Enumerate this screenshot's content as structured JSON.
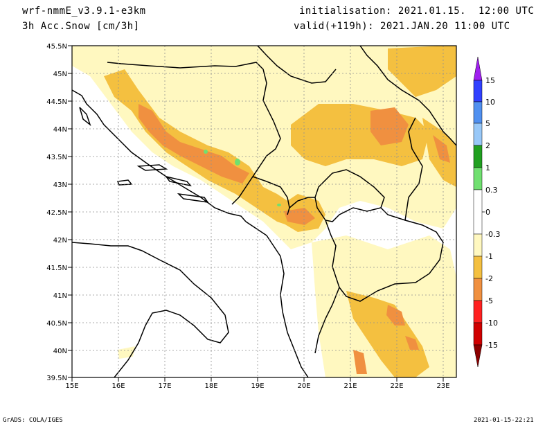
{
  "header": {
    "model": "wrf-nmmE_v3.9.1-e3km",
    "field": "3h Acc.Snow [cm/3h]",
    "initialisation": "initialisation: 2021.01.15.  12:00 UTC",
    "valid": "valid(+119h): 2021.JAN.20 11:00 UTC"
  },
  "footer": {
    "credit": "GrADS: COLA/IGES",
    "timestamp": "2021-01-15-22:21"
  },
  "map": {
    "lat_labels": [
      "45.5N",
      "45N",
      "44.5N",
      "44N",
      "43.5N",
      "43N",
      "42.5N",
      "42N",
      "41.5N",
      "41N",
      "40.5N",
      "40N",
      "39.5N"
    ],
    "lon_labels": [
      "15E",
      "16E",
      "17E",
      "18E",
      "19E",
      "20E",
      "21E",
      "22E",
      "23E"
    ],
    "lon_range": [
      15,
      23.3
    ],
    "lat_range": [
      39.5,
      45.5
    ],
    "snow_colors": {
      "light": "#fff8c0",
      "pale": "#ffe9a0",
      "yellow": "#f4c040",
      "orange": "#f0a040",
      "dark_orange": "#ee8a30",
      "green": "#70e070"
    }
  },
  "colorbar": {
    "labels": [
      "15",
      "10",
      "5",
      "2",
      "1",
      "0.3",
      "0",
      "-0.3",
      "-1",
      "-2",
      "-5",
      "-10",
      "-15"
    ],
    "colors": [
      "#a020f0",
      "#3040ff",
      "#5090f0",
      "#98c8f8",
      "#20a020",
      "#70e070",
      "#ffffff",
      "#fff8c0",
      "#f4c040",
      "#f09040",
      "#ff2020",
      "#d00000",
      "#8c0000"
    ]
  }
}
